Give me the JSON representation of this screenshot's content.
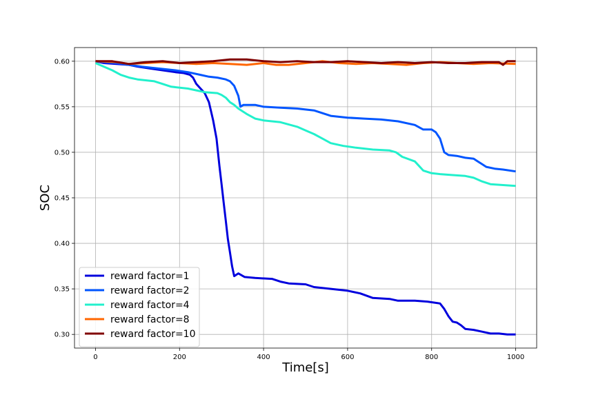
{
  "chart_data": {
    "type": "line",
    "title": "",
    "xlabel": "Time[s]",
    "ylabel": "SOC",
    "xlim": [
      -50,
      1050
    ],
    "ylim": [
      0.285,
      0.615
    ],
    "xticks": [
      0,
      200,
      400,
      600,
      800,
      1000
    ],
    "yticks": [
      0.3,
      0.35,
      0.4,
      0.45,
      0.5,
      0.55,
      0.6
    ],
    "xtick_labels": [
      "0",
      "200",
      "400",
      "600",
      "800",
      "1000"
    ],
    "ytick_labels": [
      "0.30",
      "0.35",
      "0.40",
      "0.45",
      "0.50",
      "0.55",
      "0.60"
    ],
    "grid": true,
    "legend_position": "lower-left",
    "series": [
      {
        "name": "reward factor=1",
        "color": "#0000dd",
        "points": [
          [
            0,
            0.6
          ],
          [
            20,
            0.598
          ],
          [
            50,
            0.597
          ],
          [
            80,
            0.596
          ],
          [
            100,
            0.594
          ],
          [
            130,
            0.592
          ],
          [
            160,
            0.59
          ],
          [
            190,
            0.588
          ],
          [
            210,
            0.587
          ],
          [
            225,
            0.585
          ],
          [
            232,
            0.582
          ],
          [
            240,
            0.575
          ],
          [
            250,
            0.57
          ],
          [
            260,
            0.565
          ],
          [
            270,
            0.555
          ],
          [
            280,
            0.535
          ],
          [
            288,
            0.515
          ],
          [
            295,
            0.485
          ],
          [
            300,
            0.465
          ],
          [
            305,
            0.445
          ],
          [
            310,
            0.425
          ],
          [
            315,
            0.405
          ],
          [
            320,
            0.39
          ],
          [
            325,
            0.375
          ],
          [
            330,
            0.364
          ],
          [
            340,
            0.367
          ],
          [
            355,
            0.363
          ],
          [
            380,
            0.362
          ],
          [
            420,
            0.361
          ],
          [
            440,
            0.358
          ],
          [
            460,
            0.356
          ],
          [
            500,
            0.355
          ],
          [
            520,
            0.352
          ],
          [
            560,
            0.35
          ],
          [
            600,
            0.348
          ],
          [
            630,
            0.345
          ],
          [
            660,
            0.34
          ],
          [
            700,
            0.339
          ],
          [
            720,
            0.337
          ],
          [
            760,
            0.337
          ],
          [
            790,
            0.336
          ],
          [
            820,
            0.334
          ],
          [
            830,
            0.328
          ],
          [
            840,
            0.32
          ],
          [
            850,
            0.314
          ],
          [
            860,
            0.313
          ],
          [
            870,
            0.31
          ],
          [
            880,
            0.306
          ],
          [
            900,
            0.305
          ],
          [
            920,
            0.303
          ],
          [
            940,
            0.301
          ],
          [
            960,
            0.301
          ],
          [
            980,
            0.3
          ],
          [
            1000,
            0.3
          ]
        ]
      },
      {
        "name": "reward factor=2",
        "color": "#0055ff",
        "points": [
          [
            0,
            0.6
          ],
          [
            20,
            0.599
          ],
          [
            50,
            0.598
          ],
          [
            80,
            0.596
          ],
          [
            110,
            0.594
          ],
          [
            150,
            0.592
          ],
          [
            190,
            0.59
          ],
          [
            220,
            0.588
          ],
          [
            250,
            0.585
          ],
          [
            270,
            0.583
          ],
          [
            290,
            0.582
          ],
          [
            310,
            0.58
          ],
          [
            320,
            0.578
          ],
          [
            330,
            0.573
          ],
          [
            340,
            0.562
          ],
          [
            345,
            0.55
          ],
          [
            352,
            0.552
          ],
          [
            380,
            0.552
          ],
          [
            400,
            0.55
          ],
          [
            440,
            0.549
          ],
          [
            480,
            0.548
          ],
          [
            520,
            0.546
          ],
          [
            560,
            0.54
          ],
          [
            600,
            0.538
          ],
          [
            640,
            0.537
          ],
          [
            680,
            0.536
          ],
          [
            720,
            0.534
          ],
          [
            760,
            0.53
          ],
          [
            780,
            0.525
          ],
          [
            800,
            0.525
          ],
          [
            810,
            0.522
          ],
          [
            820,
            0.515
          ],
          [
            830,
            0.5
          ],
          [
            840,
            0.497
          ],
          [
            860,
            0.496
          ],
          [
            880,
            0.494
          ],
          [
            900,
            0.493
          ],
          [
            910,
            0.49
          ],
          [
            920,
            0.487
          ],
          [
            930,
            0.484
          ],
          [
            950,
            0.482
          ],
          [
            970,
            0.481
          ],
          [
            1000,
            0.479
          ]
        ]
      },
      {
        "name": "reward factor=4",
        "color": "#22f0cc",
        "points": [
          [
            0,
            0.598
          ],
          [
            20,
            0.594
          ],
          [
            40,
            0.59
          ],
          [
            60,
            0.585
          ],
          [
            80,
            0.582
          ],
          [
            100,
            0.58
          ],
          [
            140,
            0.578
          ],
          [
            160,
            0.575
          ],
          [
            180,
            0.572
          ],
          [
            220,
            0.57
          ],
          [
            240,
            0.568
          ],
          [
            260,
            0.566
          ],
          [
            290,
            0.565
          ],
          [
            300,
            0.563
          ],
          [
            310,
            0.56
          ],
          [
            320,
            0.555
          ],
          [
            330,
            0.552
          ],
          [
            340,
            0.548
          ],
          [
            360,
            0.542
          ],
          [
            380,
            0.537
          ],
          [
            400,
            0.535
          ],
          [
            440,
            0.533
          ],
          [
            480,
            0.528
          ],
          [
            500,
            0.524
          ],
          [
            520,
            0.52
          ],
          [
            540,
            0.515
          ],
          [
            560,
            0.51
          ],
          [
            590,
            0.507
          ],
          [
            620,
            0.505
          ],
          [
            660,
            0.503
          ],
          [
            700,
            0.502
          ],
          [
            715,
            0.5
          ],
          [
            730,
            0.495
          ],
          [
            760,
            0.49
          ],
          [
            770,
            0.485
          ],
          [
            780,
            0.48
          ],
          [
            800,
            0.477
          ],
          [
            820,
            0.476
          ],
          [
            850,
            0.475
          ],
          [
            880,
            0.474
          ],
          [
            900,
            0.472
          ],
          [
            920,
            0.468
          ],
          [
            940,
            0.465
          ],
          [
            970,
            0.464
          ],
          [
            1000,
            0.463
          ]
        ]
      },
      {
        "name": "reward factor=8",
        "color": "#ff6600",
        "points": [
          [
            0,
            0.6
          ],
          [
            50,
            0.599
          ],
          [
            80,
            0.597
          ],
          [
            120,
            0.598
          ],
          [
            160,
            0.599
          ],
          [
            200,
            0.598
          ],
          [
            240,
            0.597
          ],
          [
            280,
            0.598
          ],
          [
            320,
            0.597
          ],
          [
            360,
            0.596
          ],
          [
            400,
            0.598
          ],
          [
            430,
            0.596
          ],
          [
            460,
            0.596
          ],
          [
            500,
            0.598
          ],
          [
            540,
            0.6
          ],
          [
            580,
            0.598
          ],
          [
            620,
            0.597
          ],
          [
            660,
            0.598
          ],
          [
            700,
            0.597
          ],
          [
            740,
            0.596
          ],
          [
            780,
            0.598
          ],
          [
            820,
            0.599
          ],
          [
            860,
            0.598
          ],
          [
            900,
            0.597
          ],
          [
            940,
            0.598
          ],
          [
            1000,
            0.597
          ]
        ]
      },
      {
        "name": "reward factor=10",
        "color": "#800000",
        "points": [
          [
            0,
            0.6
          ],
          [
            40,
            0.6
          ],
          [
            80,
            0.597
          ],
          [
            120,
            0.599
          ],
          [
            160,
            0.6
          ],
          [
            200,
            0.598
          ],
          [
            240,
            0.599
          ],
          [
            280,
            0.6
          ],
          [
            320,
            0.602
          ],
          [
            360,
            0.602
          ],
          [
            400,
            0.6
          ],
          [
            440,
            0.599
          ],
          [
            480,
            0.6
          ],
          [
            520,
            0.599
          ],
          [
            560,
            0.599
          ],
          [
            600,
            0.6
          ],
          [
            640,
            0.599
          ],
          [
            680,
            0.598
          ],
          [
            720,
            0.599
          ],
          [
            760,
            0.598
          ],
          [
            800,
            0.599
          ],
          [
            840,
            0.598
          ],
          [
            880,
            0.598
          ],
          [
            920,
            0.599
          ],
          [
            960,
            0.599
          ],
          [
            970,
            0.596
          ],
          [
            980,
            0.6
          ],
          [
            1000,
            0.6
          ]
        ]
      }
    ]
  }
}
